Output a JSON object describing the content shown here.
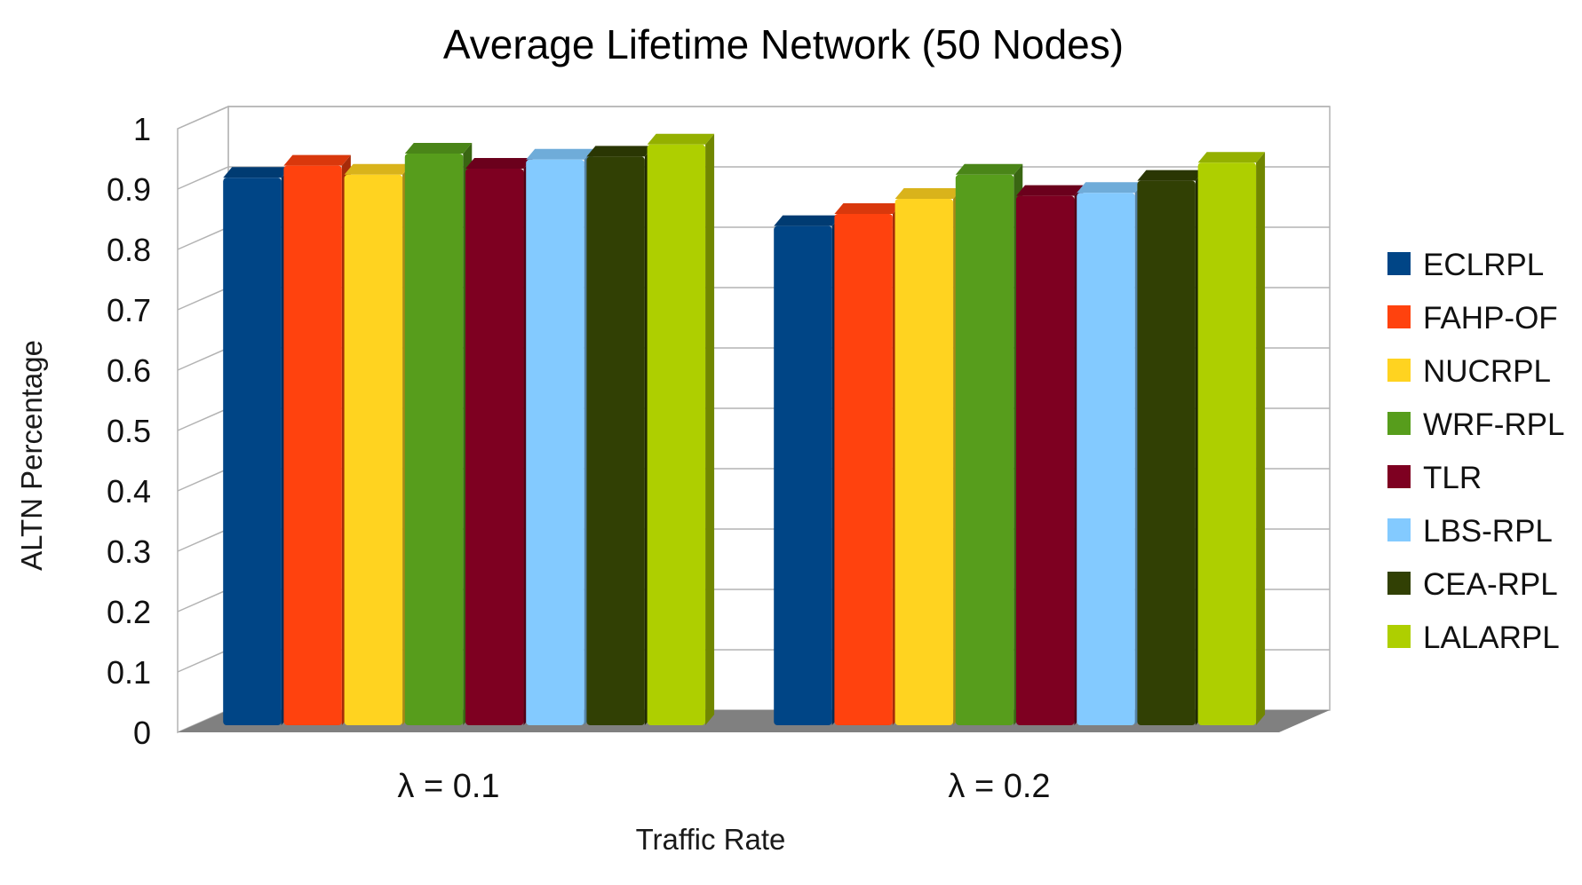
{
  "chart_data": {
    "type": "bar",
    "title": "Average Lifetime Network (50 Nodes)",
    "xlabel": "Traffic Rate",
    "ylabel": "ALTN Percentage",
    "ylim": [
      0,
      1
    ],
    "yticks": [
      "0",
      "0.1",
      "0.2",
      "0.3",
      "0.4",
      "0.5",
      "0.6",
      "0.7",
      "0.8",
      "0.9",
      "1"
    ],
    "categories": [
      "λ = 0.1",
      "λ = 0.2"
    ],
    "legend_position": "right",
    "grid": true,
    "series": [
      {
        "name": "ECLRPL",
        "color": "#004586",
        "values": [
          0.91,
          0.83
        ]
      },
      {
        "name": "FAHP-OF",
        "color": "#ff420e",
        "values": [
          0.93,
          0.85
        ]
      },
      {
        "name": "NUCRPL",
        "color": "#ffd320",
        "values": [
          0.915,
          0.875
        ]
      },
      {
        "name": "WRF-RPL",
        "color": "#579d1c",
        "values": [
          0.95,
          0.915
        ]
      },
      {
        "name": "TLR",
        "color": "#7e0021",
        "values": [
          0.925,
          0.88
        ]
      },
      {
        "name": "LBS-RPL",
        "color": "#83caff",
        "values": [
          0.94,
          0.885
        ]
      },
      {
        "name": "CEA-RPL",
        "color": "#314004",
        "values": [
          0.945,
          0.905
        ]
      },
      {
        "name": "LALARPL",
        "color": "#aecf00",
        "values": [
          0.965,
          0.935
        ]
      }
    ]
  }
}
